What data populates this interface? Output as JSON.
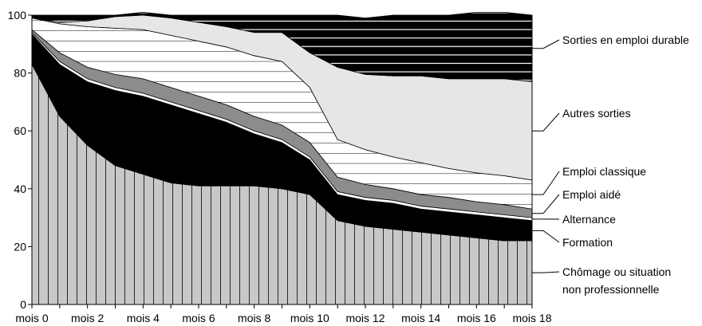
{
  "chart_data": {
    "type": "area",
    "stacked": true,
    "title": "",
    "xlabel": "",
    "ylabel": "",
    "ylim": [
      0,
      100
    ],
    "yticks": [
      0,
      20,
      40,
      60,
      80,
      100
    ],
    "xtick_labels": [
      "mois 0",
      "mois 2",
      "mois 4",
      "mois 6",
      "mois 8",
      "mois 10",
      "mois 12",
      "mois 14",
      "mois 16",
      "mois 18"
    ],
    "x": [
      0,
      1,
      2,
      3,
      4,
      5,
      6,
      7,
      8,
      9,
      10,
      11,
      12,
      13,
      14,
      15,
      16,
      17,
      18
    ],
    "legend_placement": "right",
    "series": [
      {
        "name": "Chômage ou situation",
        "name_line2": "non professionnelle",
        "fill": "vstripes",
        "color": "#c8c8c8",
        "values": [
          83,
          65,
          55,
          48,
          45,
          42,
          41,
          41,
          41,
          40,
          38,
          29,
          27,
          26,
          25,
          24,
          23,
          22,
          22
        ]
      },
      {
        "name": "Formation",
        "fill": "solid",
        "color": "#000000",
        "values": [
          10.5,
          18,
          22,
          26,
          27,
          27,
          25,
          22,
          18,
          16,
          12,
          9,
          9,
          9,
          8,
          8,
          8,
          8,
          7
        ]
      },
      {
        "name": "Alternance",
        "fill": "solid",
        "color": "#ffffff",
        "values": [
          0.5,
          1.0,
          1.0,
          1.0,
          1.0,
          1.0,
          1.0,
          1.0,
          1.0,
          1.0,
          1.0,
          1.0,
          1.0,
          1.0,
          1.0,
          1.0,
          1.0,
          1.0,
          1.0
        ]
      },
      {
        "name": "Emploi aidé",
        "fill": "solid",
        "color": "#8c8c8c",
        "values": [
          1.0,
          3.0,
          4.0,
          4.5,
          5.0,
          5.0,
          5.0,
          5.0,
          5.0,
          5.0,
          5.0,
          5.0,
          4.5,
          4.0,
          4.0,
          4.0,
          3.5,
          3.5,
          3.0
        ]
      },
      {
        "name": "Emploi classique",
        "fill": "hstripes",
        "color": "#ffffff",
        "values": [
          4.0,
          10.0,
          14.0,
          16.0,
          17.0,
          18.0,
          19.0,
          20.0,
          21.0,
          22.0,
          19.0,
          13.0,
          12.0,
          11.0,
          11.0,
          10.0,
          10.0,
          10.0,
          10.0
        ]
      },
      {
        "name": "Autres sorties",
        "fill": "solid",
        "color": "#e6e6e6",
        "values": [
          0.0,
          0.5,
          2.0,
          4.0,
          5.0,
          6.0,
          6.5,
          7.0,
          8.0,
          10.0,
          12.0,
          25.0,
          26.0,
          28.0,
          30.0,
          31.0,
          32.5,
          33.5,
          34.0
        ]
      },
      {
        "name": "Sorties en emploi durable",
        "fill": "hstripes",
        "color": "#000000",
        "values": [
          1.0,
          2.5,
          2.0,
          0.5,
          1.0,
          1.0,
          2.5,
          4.0,
          6.0,
          6.0,
          13.0,
          18.0,
          19.5,
          21.0,
          21.0,
          22.0,
          23.0,
          23.0,
          23.0
        ]
      }
    ]
  }
}
